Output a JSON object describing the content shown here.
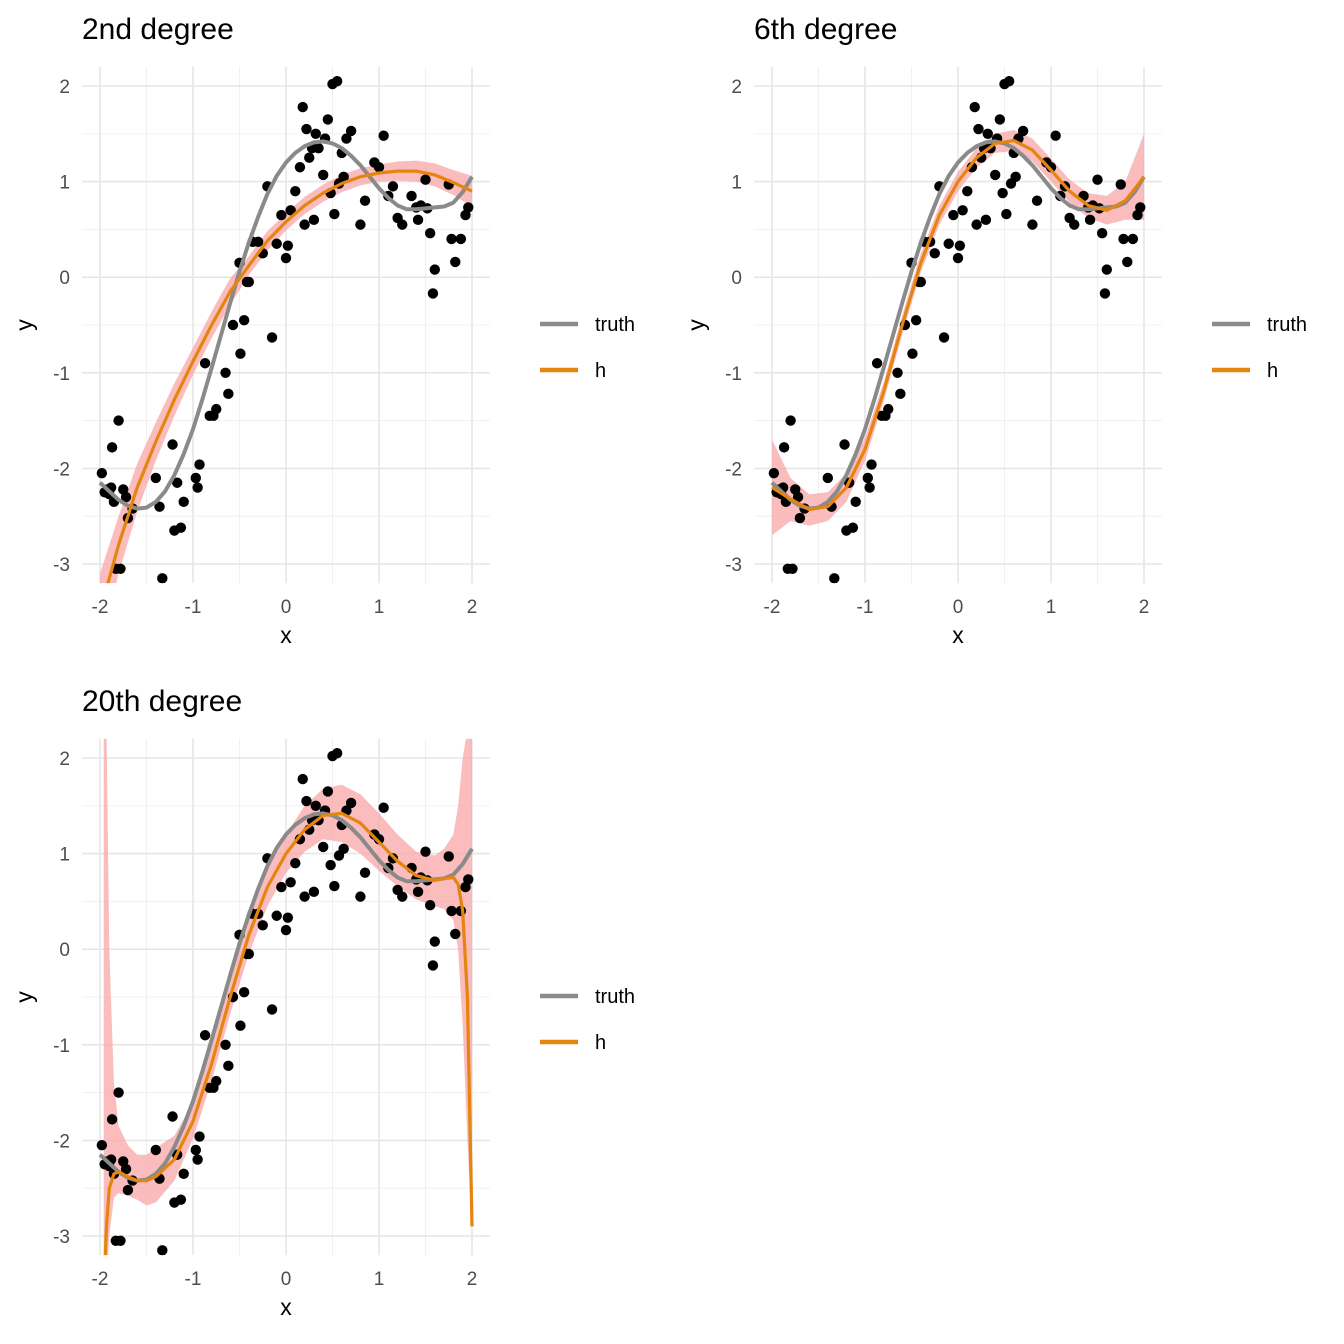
{
  "colors": {
    "truth": "#8a8a8a",
    "h": "#e5850f",
    "band": "#f8a6a6",
    "points": "#000000",
    "grid_major": "#e6e6e6",
    "grid_minor": "#f0f0f0"
  },
  "chart_data": [
    {
      "type": "scatter",
      "title": "2nd degree",
      "xlabel": "x",
      "ylabel": "y",
      "xlim": [
        -2,
        2
      ],
      "ylim": [
        -3.2,
        2.2
      ],
      "x_ticks": [
        "-2",
        "-1",
        "0",
        "1",
        "2"
      ],
      "y_ticks": [
        "2",
        "1",
        "0",
        "-1",
        "-2",
        "-3"
      ],
      "grid": true,
      "legend_position": "right",
      "legend": [
        "truth",
        "h"
      ],
      "fit": {
        "name": "h",
        "x": [
          -2.0,
          -1.8,
          -1.6,
          -1.4,
          -1.2,
          -1.0,
          -0.8,
          -0.6,
          -0.4,
          -0.2,
          0.0,
          0.2,
          0.4,
          0.6,
          0.8,
          1.0,
          1.2,
          1.4,
          1.6,
          1.8,
          2.0
        ],
        "y": [
          -3.5,
          -2.8,
          -2.2,
          -1.72,
          -1.28,
          -0.88,
          -0.5,
          -0.15,
          0.12,
          0.38,
          0.58,
          0.75,
          0.88,
          0.98,
          1.05,
          1.09,
          1.11,
          1.11,
          1.07,
          0.99,
          0.9
        ],
        "lower": [
          -3.9,
          -3.1,
          -2.45,
          -1.92,
          -1.45,
          -1.02,
          -0.64,
          -0.29,
          0.02,
          0.28,
          0.49,
          0.66,
          0.79,
          0.89,
          0.96,
          1.0,
          1.01,
          1.0,
          0.95,
          0.86,
          0.74
        ],
        "upper": [
          -3.1,
          -2.5,
          -1.95,
          -1.52,
          -1.11,
          -0.74,
          -0.36,
          -0.01,
          0.22,
          0.48,
          0.67,
          0.84,
          0.97,
          1.07,
          1.14,
          1.18,
          1.21,
          1.22,
          1.19,
          1.12,
          1.06
        ]
      }
    },
    {
      "type": "scatter",
      "title": "6th degree",
      "xlabel": "x",
      "ylabel": "y",
      "xlim": [
        -2,
        2
      ],
      "ylim": [
        -3.2,
        2.2
      ],
      "x_ticks": [
        "-2",
        "-1",
        "0",
        "1",
        "2"
      ],
      "y_ticks": [
        "2",
        "1",
        "0",
        "-1",
        "-2",
        "-3"
      ],
      "grid": true,
      "legend_position": "right",
      "legend": [
        "truth",
        "h"
      ],
      "fit": {
        "name": "h",
        "x": [
          -2.0,
          -1.8,
          -1.6,
          -1.4,
          -1.2,
          -1.0,
          -0.8,
          -0.6,
          -0.4,
          -0.2,
          0.0,
          0.2,
          0.4,
          0.6,
          0.8,
          1.0,
          1.2,
          1.4,
          1.6,
          1.8,
          2.0
        ],
        "y": [
          -2.2,
          -2.32,
          -2.43,
          -2.4,
          -2.2,
          -1.8,
          -1.2,
          -0.5,
          0.15,
          0.65,
          1.0,
          1.25,
          1.4,
          1.43,
          1.33,
          1.12,
          0.9,
          0.75,
          0.7,
          0.8,
          1.05
        ],
        "lower": [
          -2.7,
          -2.55,
          -2.6,
          -2.55,
          -2.35,
          -1.92,
          -1.3,
          -0.6,
          0.05,
          0.55,
          0.9,
          1.15,
          1.3,
          1.32,
          1.21,
          1.0,
          0.78,
          0.62,
          0.55,
          0.6,
          0.6
        ],
        "upper": [
          -1.7,
          -2.1,
          -2.27,
          -2.25,
          -2.05,
          -1.68,
          -1.1,
          -0.4,
          0.25,
          0.75,
          1.1,
          1.35,
          1.5,
          1.54,
          1.45,
          1.24,
          1.02,
          0.88,
          0.85,
          1.0,
          1.5
        ]
      }
    },
    {
      "type": "scatter",
      "title": "20th degree",
      "xlabel": "x",
      "ylabel": "y",
      "xlim": [
        -2,
        2
      ],
      "ylim": [
        -3.2,
        2.2
      ],
      "x_ticks": [
        "-2",
        "-1",
        "0",
        "1",
        "2"
      ],
      "y_ticks": [
        "2",
        "1",
        "0",
        "-1",
        "-2",
        "-3"
      ],
      "grid": true,
      "legend_position": "right",
      "legend": [
        "truth",
        "h"
      ],
      "fit": {
        "name": "h",
        "x": [
          -1.96,
          -1.93,
          -1.9,
          -1.85,
          -1.8,
          -1.7,
          -1.6,
          -1.5,
          -1.4,
          -1.2,
          -1.0,
          -0.8,
          -0.6,
          -0.4,
          -0.2,
          0.0,
          0.2,
          0.4,
          0.6,
          0.8,
          1.0,
          1.2,
          1.4,
          1.6,
          1.7,
          1.8,
          1.85,
          1.9,
          1.95,
          2.0
        ],
        "y": [
          -3.6,
          -2.9,
          -2.5,
          -2.35,
          -2.33,
          -2.38,
          -2.42,
          -2.42,
          -2.38,
          -2.2,
          -1.8,
          -1.2,
          -0.5,
          0.15,
          0.65,
          1.0,
          1.25,
          1.4,
          1.42,
          1.32,
          1.12,
          0.92,
          0.77,
          0.72,
          0.74,
          0.75,
          0.68,
          0.4,
          -0.5,
          -2.9
        ],
        "lower": [
          -3.6,
          -3.5,
          -3.0,
          -2.6,
          -2.55,
          -2.58,
          -2.62,
          -2.68,
          -2.65,
          -2.42,
          -1.98,
          -1.38,
          -0.68,
          -0.05,
          0.45,
          0.8,
          1.02,
          1.15,
          1.12,
          1.0,
          0.82,
          0.66,
          0.52,
          0.45,
          0.42,
          0.3,
          0.0,
          -0.8,
          -2.0,
          -2.95
        ],
        "upper": [
          2.3,
          2.3,
          0.0,
          -1.4,
          -1.85,
          -2.05,
          -2.15,
          -2.15,
          -2.08,
          -1.95,
          -1.6,
          -1.0,
          -0.32,
          0.35,
          0.85,
          1.2,
          1.5,
          1.68,
          1.72,
          1.62,
          1.42,
          1.2,
          1.02,
          0.98,
          1.05,
          1.2,
          1.5,
          2.0,
          2.3,
          2.3
        ]
      }
    }
  ],
  "truth": {
    "name": "truth",
    "x": [
      -2.0,
      -1.9,
      -1.8,
      -1.7,
      -1.6,
      -1.5,
      -1.4,
      -1.3,
      -1.2,
      -1.1,
      -1.0,
      -0.9,
      -0.8,
      -0.7,
      -0.6,
      -0.5,
      -0.4,
      -0.3,
      -0.2,
      -0.1,
      0.0,
      0.1,
      0.2,
      0.3,
      0.4,
      0.5,
      0.6,
      0.7,
      0.8,
      0.9,
      1.0,
      1.1,
      1.2,
      1.3,
      1.4,
      1.5,
      1.6,
      1.7,
      1.8,
      1.9,
      2.0
    ],
    "y": [
      -2.15,
      -2.24,
      -2.33,
      -2.39,
      -2.42,
      -2.41,
      -2.35,
      -2.24,
      -2.07,
      -1.85,
      -1.59,
      -1.28,
      -0.95,
      -0.61,
      -0.27,
      0.06,
      0.36,
      0.63,
      0.87,
      1.06,
      1.2,
      1.3,
      1.37,
      1.41,
      1.42,
      1.4,
      1.35,
      1.27,
      1.17,
      1.05,
      0.93,
      0.83,
      0.75,
      0.71,
      0.71,
      0.72,
      0.73,
      0.74,
      0.78,
      0.89,
      1.05
    ]
  },
  "points": {
    "x": [
      -1.98,
      -1.95,
      -1.92,
      -1.9,
      -1.88,
      -1.87,
      -1.85,
      -1.83,
      -1.8,
      -1.78,
      -1.75,
      -1.72,
      -1.7,
      -1.65,
      -1.4,
      -1.36,
      -1.33,
      -1.22,
      -1.2,
      -1.17,
      -1.13,
      -1.1,
      -0.97,
      -0.95,
      -0.93,
      -0.87,
      -0.82,
      -0.78,
      -0.75,
      -0.65,
      -0.62,
      -0.57,
      -0.5,
      -0.49,
      -0.45,
      -0.42,
      -0.4,
      -0.36,
      -0.3,
      -0.25,
      -0.2,
      -0.15,
      -0.1,
      -0.05,
      0.0,
      0.02,
      0.05,
      0.1,
      0.15,
      0.18,
      0.2,
      0.22,
      0.25,
      0.28,
      0.3,
      0.32,
      0.35,
      0.4,
      0.42,
      0.45,
      0.48,
      0.5,
      0.52,
      0.55,
      0.57,
      0.6,
      0.62,
      0.65,
      0.7,
      0.8,
      0.85,
      0.95,
      1.0,
      1.05,
      1.1,
      1.15,
      1.2,
      1.25,
      1.35,
      1.4,
      1.42,
      1.45,
      1.5,
      1.52,
      1.55,
      1.58,
      1.6,
      1.75,
      1.78,
      1.82,
      1.88,
      1.93,
      1.96
    ],
    "y": [
      -2.05,
      -2.25,
      -2.22,
      -2.27,
      -2.2,
      -1.78,
      -2.35,
      -3.05,
      -1.5,
      -3.05,
      -2.22,
      -2.3,
      -2.52,
      -2.42,
      -2.1,
      -2.4,
      -3.15,
      -1.75,
      -2.65,
      -2.15,
      -2.62,
      -2.35,
      -2.1,
      -2.2,
      -1.96,
      -0.9,
      -1.45,
      -1.45,
      -1.38,
      -1.0,
      -1.22,
      -0.5,
      0.15,
      -0.8,
      -0.45,
      -0.05,
      -0.05,
      0.37,
      0.37,
      0.25,
      0.95,
      -0.63,
      0.35,
      0.65,
      0.2,
      0.33,
      0.7,
      0.9,
      1.15,
      1.78,
      0.55,
      1.55,
      1.25,
      1.35,
      0.6,
      1.5,
      1.35,
      1.07,
      1.45,
      1.65,
      0.88,
      2.02,
      0.66,
      2.05,
      0.98,
      1.3,
      1.05,
      1.45,
      1.53,
      0.55,
      0.8,
      1.2,
      1.15,
      1.48,
      0.85,
      0.95,
      0.62,
      0.55,
      0.85,
      0.73,
      0.6,
      0.75,
      1.02,
      0.72,
      0.46,
      -0.17,
      0.08,
      0.97,
      0.4,
      0.16,
      0.4,
      0.65,
      0.73
    ]
  }
}
